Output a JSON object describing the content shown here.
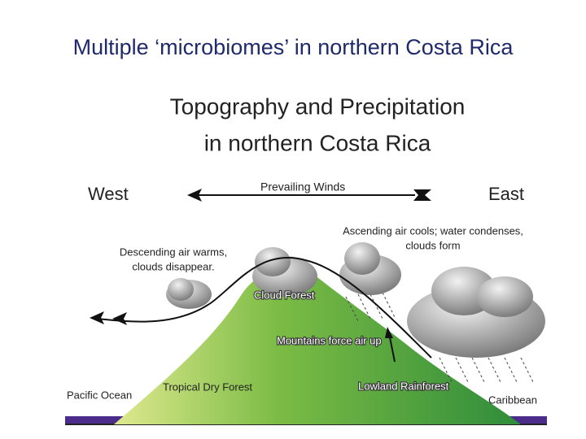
{
  "slide": {
    "title": "Multiple ‘microbiomes’ in northern Costa Rica"
  },
  "diagram": {
    "title": [
      "Topography and Precipitation",
      "in northern Costa Rica"
    ],
    "west": "West",
    "east": "East",
    "winds": "Prevailing Winds",
    "ascending": [
      "Ascending air cools; water condenses,",
      "clouds form"
    ],
    "descending": [
      "Descending air warms,",
      "clouds disappear."
    ],
    "cloud_forest": "Cloud Forest",
    "mountains": "Mountains force air up",
    "pacific": "Pacific Ocean",
    "dry_forest": "Tropical Dry Forest",
    "rainforest": "Lowland Rainforest",
    "caribbean": "Caribbean"
  }
}
